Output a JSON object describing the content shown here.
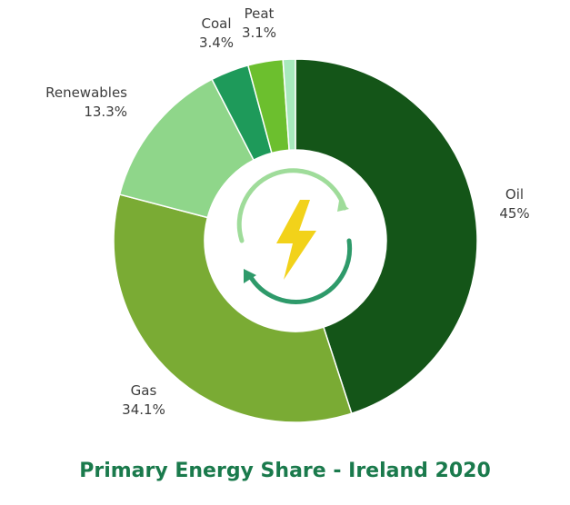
{
  "chart_data": {
    "type": "pie",
    "variant": "donut",
    "title": "Primary Energy Share - Ireland 2020",
    "slices": [
      {
        "name": "Oil",
        "value": 45,
        "value_label": "45%",
        "color": "#145518"
      },
      {
        "name": "Gas",
        "value": 34.1,
        "value_label": "34.1%",
        "color": "#7aab34"
      },
      {
        "name": "Renewables",
        "value": 13.3,
        "value_label": "13.3%",
        "color": "#8fd68a"
      },
      {
        "name": "Coal",
        "value": 3.4,
        "value_label": "3.4%",
        "color": "#1e9a5a"
      },
      {
        "name": "Peat",
        "value": 3.1,
        "value_label": "3.1%",
        "color": "#6cbf2e"
      },
      {
        "name": "",
        "value": 1.1,
        "value_label": "",
        "color": "#a8e9bd"
      }
    ]
  },
  "center_icon": {
    "name": "energy-cycle-icon",
    "bolt_color": "#f2d21a",
    "arrow_light_color": "#9fdc9a",
    "arrow_dark_color": "#2e9a6a"
  }
}
